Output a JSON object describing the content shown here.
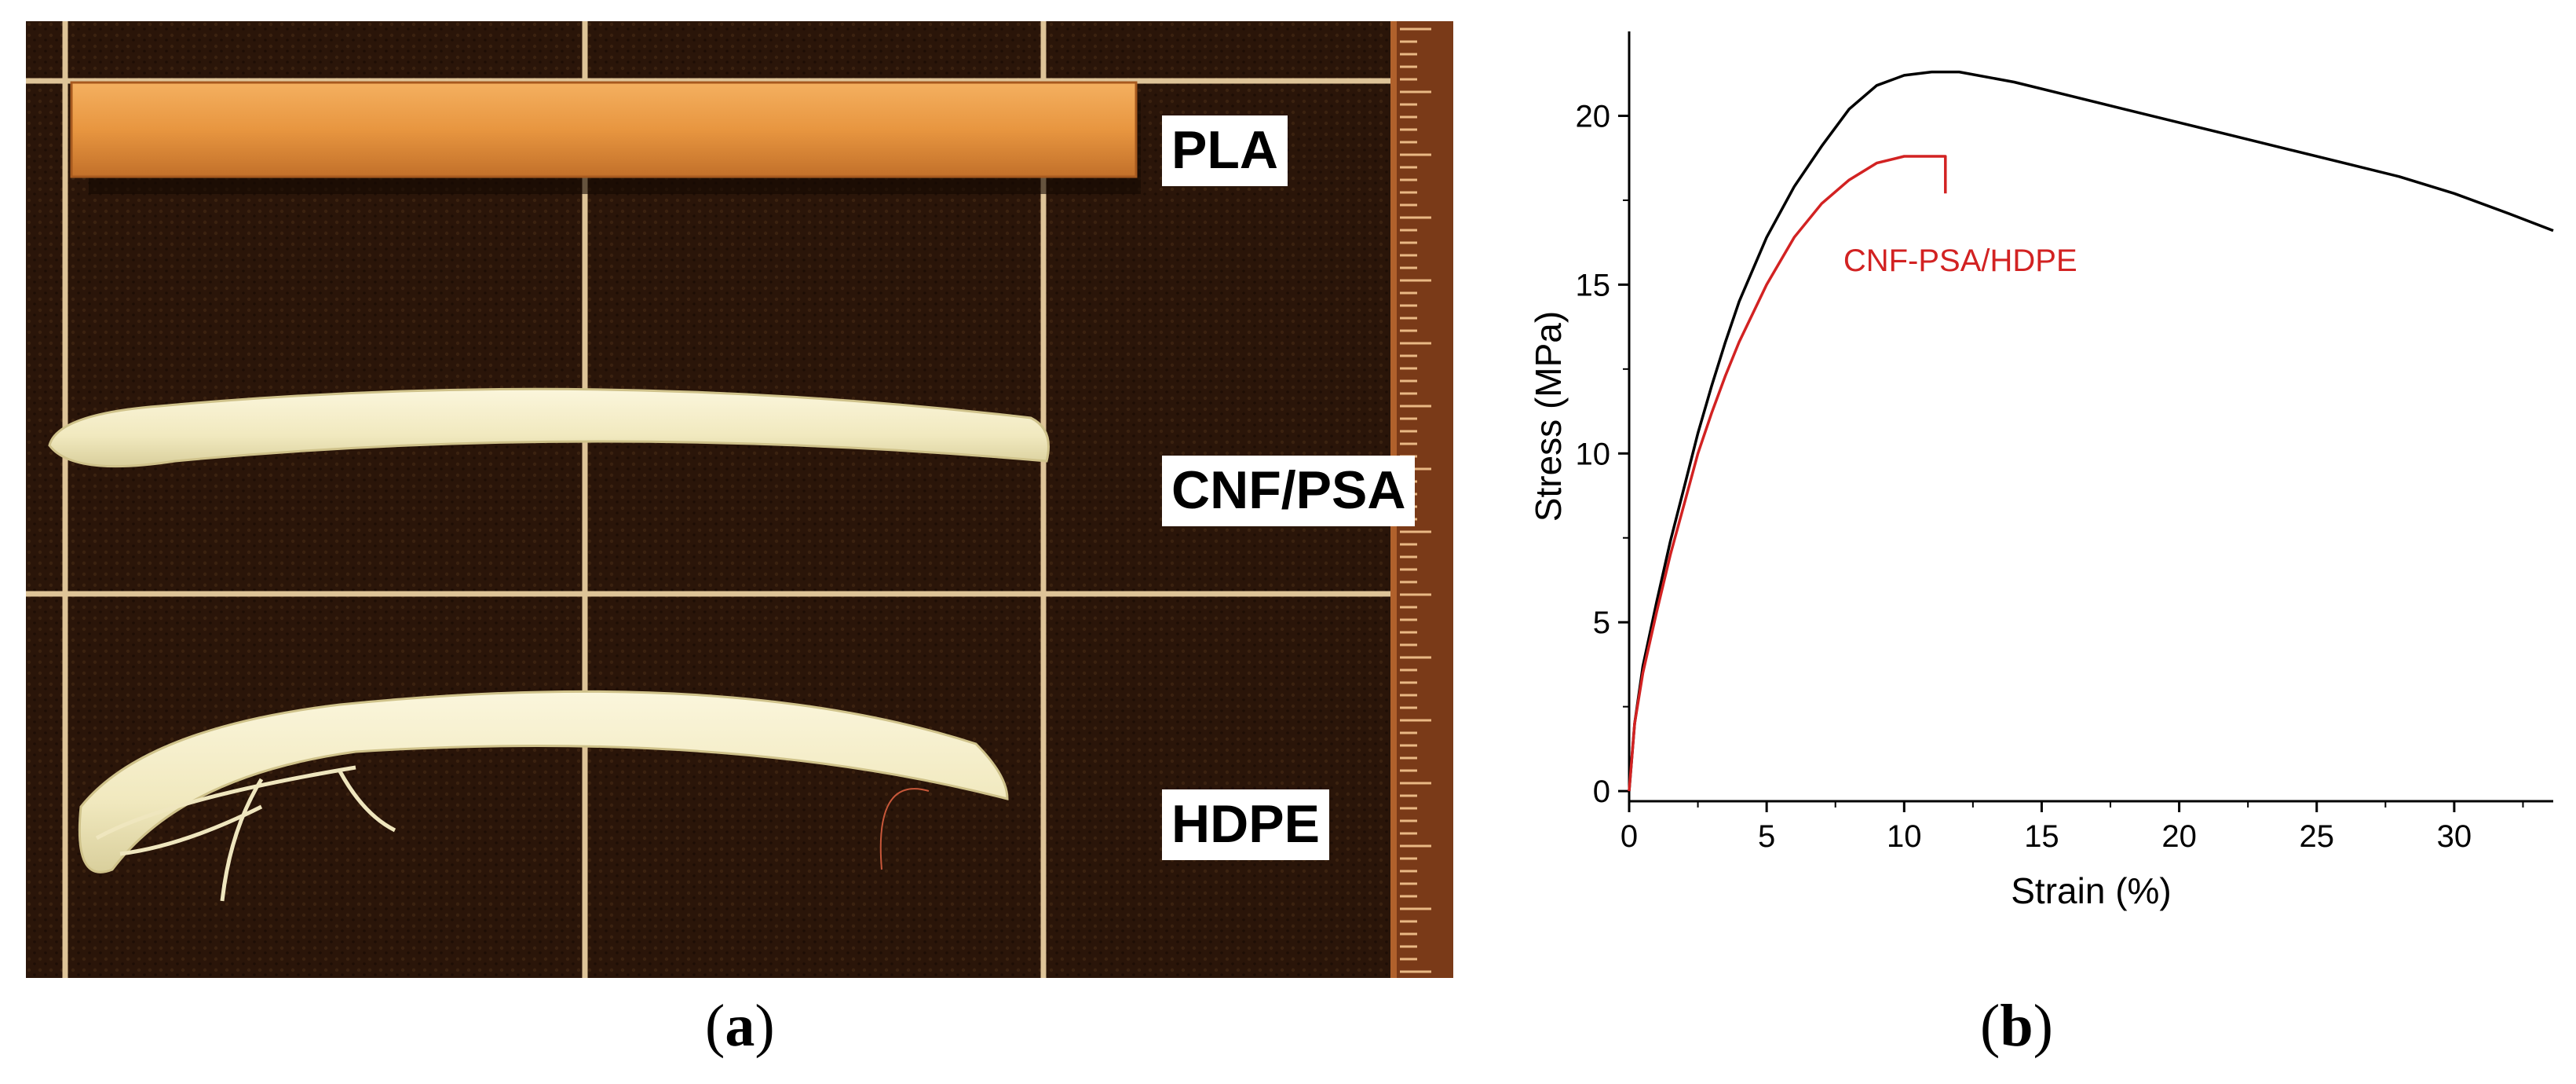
{
  "panel_a": {
    "caption_letter": "a",
    "labels": {
      "pla": "PLA",
      "cnf_psa": "CNF/PSA",
      "hdpe": "HDPE"
    }
  },
  "panel_b": {
    "caption_letter": "b"
  },
  "colors": {
    "black_curve": "#000000",
    "red_curve": "#d22222",
    "photo_background": "#2a1509",
    "grid_lines": "#f2d7a8",
    "pla_bar": "#e6953e",
    "white_filament": "#f3ecc6"
  },
  "chart_data": {
    "type": "line",
    "title": "",
    "xlabel": "Strain (%)",
    "ylabel": "Stress (MPa)",
    "xlim": [
      0,
      33.6
    ],
    "ylim": [
      -0.3,
      22.5
    ],
    "xticks": [
      0,
      5,
      10,
      15,
      20,
      25,
      30
    ],
    "yticks": [
      0,
      5,
      10,
      15,
      20
    ],
    "grid": false,
    "annotations": [
      {
        "text": "CNF-PSA/HDPE",
        "series": 1,
        "color": "#d22222",
        "at": {
          "x": 11.5,
          "y": 15.4
        }
      }
    ],
    "series": [
      {
        "color": "#000000",
        "points": [
          [
            0,
            0
          ],
          [
            0.2,
            2.0
          ],
          [
            0.5,
            3.7
          ],
          [
            1.0,
            5.6
          ],
          [
            1.5,
            7.4
          ],
          [
            2.0,
            9.0
          ],
          [
            2.5,
            10.6
          ],
          [
            3.0,
            12.0
          ],
          [
            3.5,
            13.3
          ],
          [
            4.0,
            14.5
          ],
          [
            5.0,
            16.4
          ],
          [
            6.0,
            17.9
          ],
          [
            7.0,
            19.1
          ],
          [
            8.0,
            20.2
          ],
          [
            9.0,
            20.9
          ],
          [
            10.0,
            21.2
          ],
          [
            11.0,
            21.3
          ],
          [
            12.0,
            21.3
          ],
          [
            14.0,
            21.0
          ],
          [
            16.0,
            20.6
          ],
          [
            18.0,
            20.2
          ],
          [
            20.0,
            19.8
          ],
          [
            22.0,
            19.4
          ],
          [
            24.0,
            19.0
          ],
          [
            26.0,
            18.6
          ],
          [
            28.0,
            18.2
          ],
          [
            30.0,
            17.7
          ],
          [
            32.0,
            17.1
          ],
          [
            33.6,
            16.6
          ]
        ]
      },
      {
        "color": "#d22222",
        "points": [
          [
            0,
            0
          ],
          [
            0.2,
            2.0
          ],
          [
            0.5,
            3.5
          ],
          [
            1.0,
            5.3
          ],
          [
            1.5,
            7.0
          ],
          [
            2.0,
            8.5
          ],
          [
            2.5,
            10.0
          ],
          [
            3.0,
            11.2
          ],
          [
            3.5,
            12.3
          ],
          [
            4.0,
            13.3
          ],
          [
            5.0,
            15.0
          ],
          [
            6.0,
            16.4
          ],
          [
            7.0,
            17.4
          ],
          [
            8.0,
            18.1
          ],
          [
            9.0,
            18.6
          ],
          [
            10.0,
            18.8
          ],
          [
            11.0,
            18.8
          ],
          [
            11.5,
            18.8
          ],
          [
            11.5,
            17.7
          ]
        ]
      }
    ]
  }
}
